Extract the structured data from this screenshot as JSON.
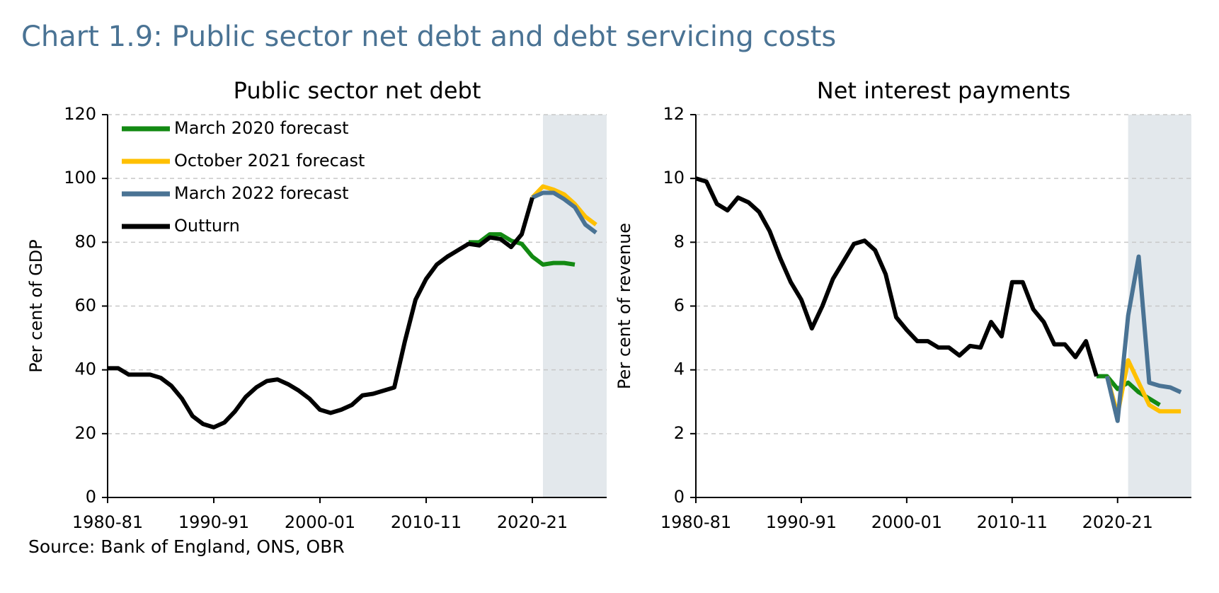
{
  "title": "Chart 1.9: Public sector net debt and debt servicing costs",
  "source": "Source: Bank of England, ONS, OBR",
  "chart_data": [
    {
      "type": "line",
      "title": "Public sector net debt",
      "y_label": "Per cent of GDP",
      "x": [
        1980,
        1981,
        1982,
        1983,
        1984,
        1985,
        1986,
        1987,
        1988,
        1989,
        1990,
        1991,
        1992,
        1993,
        1994,
        1995,
        1996,
        1997,
        1998,
        1999,
        2000,
        2001,
        2002,
        2003,
        2004,
        2005,
        2006,
        2007,
        2008,
        2009,
        2010,
        2011,
        2012,
        2013,
        2014,
        2015,
        2016,
        2017,
        2018,
        2019,
        2020,
        2021,
        2022,
        2023,
        2024,
        2025,
        2026
      ],
      "xlim": [
        1980,
        2027
      ],
      "xticks": [
        {
          "value": 1980,
          "label": "1980-81"
        },
        {
          "value": 1990,
          "label": "1990-91"
        },
        {
          "value": 2000,
          "label": "2000-01"
        },
        {
          "value": 2010,
          "label": "2010-11"
        },
        {
          "value": 2020,
          "label": "2020-21"
        }
      ],
      "ylim": [
        0,
        120
      ],
      "yticks": [
        0,
        20,
        40,
        60,
        80,
        100,
        120
      ],
      "grid": true,
      "shade": [
        2021,
        2027
      ],
      "shade_color": "#e3e8ec",
      "legend": "upper left",
      "series": [
        {
          "name": "March 2020 forecast",
          "color": "#138a13",
          "values": [
            null,
            null,
            null,
            null,
            null,
            null,
            null,
            null,
            null,
            null,
            null,
            null,
            null,
            null,
            null,
            null,
            null,
            null,
            null,
            null,
            null,
            null,
            null,
            null,
            null,
            null,
            null,
            null,
            null,
            null,
            null,
            null,
            null,
            null,
            80,
            80,
            82.5,
            82.5,
            80.5,
            79.5,
            75.5,
            73,
            73.5,
            73.5,
            73,
            null,
            null
          ]
        },
        {
          "name": "October 2021 forecast",
          "color": "#ffc000",
          "values": [
            null,
            null,
            null,
            null,
            null,
            null,
            null,
            null,
            null,
            null,
            null,
            null,
            null,
            null,
            null,
            null,
            null,
            null,
            null,
            null,
            null,
            null,
            null,
            null,
            null,
            null,
            null,
            null,
            null,
            null,
            null,
            null,
            null,
            null,
            null,
            null,
            null,
            null,
            null,
            null,
            94,
            97.5,
            96.5,
            95,
            92,
            88,
            85.5
          ]
        },
        {
          "name": "March 2022 forecast",
          "color": "#4a7394",
          "values": [
            null,
            null,
            null,
            null,
            null,
            null,
            null,
            null,
            null,
            null,
            null,
            null,
            null,
            null,
            null,
            null,
            null,
            null,
            null,
            null,
            null,
            null,
            null,
            null,
            null,
            null,
            null,
            null,
            null,
            null,
            null,
            null,
            null,
            null,
            null,
            null,
            null,
            null,
            null,
            null,
            94,
            95.5,
            95.5,
            93.5,
            91,
            85.5,
            83
          ]
        },
        {
          "name": "Outturn",
          "color": "#000000",
          "values": [
            40.5,
            40.5,
            38.5,
            38.5,
            38.5,
            37.5,
            35,
            31,
            25.5,
            23,
            22,
            23.5,
            27,
            31.5,
            34.5,
            36.5,
            37,
            35.5,
            33.5,
            31,
            27.5,
            26.5,
            27.5,
            29,
            32,
            32.5,
            33.5,
            34.5,
            49,
            62,
            68.5,
            73,
            75.5,
            77.5,
            79.5,
            79,
            81.5,
            81,
            78.5,
            82.5,
            94,
            null,
            null,
            null,
            null,
            null,
            null
          ]
        }
      ]
    },
    {
      "type": "line",
      "title": "Net interest payments",
      "y_label": "Per cent of revenue",
      "x": [
        1980,
        1981,
        1982,
        1983,
        1984,
        1985,
        1986,
        1987,
        1988,
        1989,
        1990,
        1991,
        1992,
        1993,
        1994,
        1995,
        1996,
        1997,
        1998,
        1999,
        2000,
        2001,
        2002,
        2003,
        2004,
        2005,
        2006,
        2007,
        2008,
        2009,
        2010,
        2011,
        2012,
        2013,
        2014,
        2015,
        2016,
        2017,
        2018,
        2019,
        2020,
        2021,
        2022,
        2023,
        2024,
        2025,
        2026
      ],
      "xlim": [
        1980,
        2027
      ],
      "xticks": [
        {
          "value": 1980,
          "label": "1980-81"
        },
        {
          "value": 1990,
          "label": "1990-91"
        },
        {
          "value": 2000,
          "label": "2000-01"
        },
        {
          "value": 2010,
          "label": "2010-11"
        },
        {
          "value": 2020,
          "label": "2020-21"
        }
      ],
      "ylim": [
        0,
        12
      ],
      "yticks": [
        0,
        2,
        4,
        6,
        8,
        10,
        12
      ],
      "grid": true,
      "shade": [
        2021,
        2027
      ],
      "shade_color": "#e3e8ec",
      "series": [
        {
          "color": "#138a13",
          "values": [
            null,
            null,
            null,
            null,
            null,
            null,
            null,
            null,
            null,
            null,
            null,
            null,
            null,
            null,
            null,
            null,
            null,
            null,
            null,
            null,
            null,
            null,
            null,
            null,
            null,
            null,
            null,
            null,
            null,
            null,
            null,
            null,
            null,
            null,
            null,
            null,
            null,
            null,
            3.8,
            3.8,
            3.4,
            3.6,
            3.3,
            3.1,
            2.9,
            null,
            null
          ]
        },
        {
          "color": "#ffc000",
          "values": [
            null,
            null,
            null,
            null,
            null,
            null,
            null,
            null,
            null,
            null,
            null,
            null,
            null,
            null,
            null,
            null,
            null,
            null,
            null,
            null,
            null,
            null,
            null,
            null,
            null,
            null,
            null,
            null,
            null,
            null,
            null,
            null,
            null,
            null,
            null,
            null,
            null,
            null,
            null,
            3.8,
            2.6,
            4.3,
            3.6,
            2.9,
            2.7,
            2.7,
            2.7
          ]
        },
        {
          "color": "#4a7394",
          "values": [
            null,
            null,
            null,
            null,
            null,
            null,
            null,
            null,
            null,
            null,
            null,
            null,
            null,
            null,
            null,
            null,
            null,
            null,
            null,
            null,
            null,
            null,
            null,
            null,
            null,
            null,
            null,
            null,
            null,
            null,
            null,
            null,
            null,
            null,
            null,
            null,
            null,
            null,
            null,
            3.8,
            2.4,
            5.7,
            7.55,
            3.6,
            3.5,
            3.45,
            3.3
          ]
        },
        {
          "color": "#000000",
          "values": [
            10,
            9.9,
            9.2,
            9.0,
            9.4,
            9.25,
            8.95,
            8.35,
            7.5,
            6.75,
            6.2,
            5.3,
            6.0,
            6.85,
            7.4,
            7.95,
            8.05,
            7.75,
            7.0,
            5.65,
            5.25,
            4.9,
            4.9,
            4.7,
            4.7,
            4.45,
            4.75,
            4.7,
            5.5,
            5.05,
            6.75,
            6.75,
            5.9,
            5.5,
            4.8,
            4.8,
            4.4,
            4.9,
            3.8,
            null,
            null,
            null,
            null,
            null,
            null,
            null,
            null
          ]
        }
      ]
    }
  ]
}
